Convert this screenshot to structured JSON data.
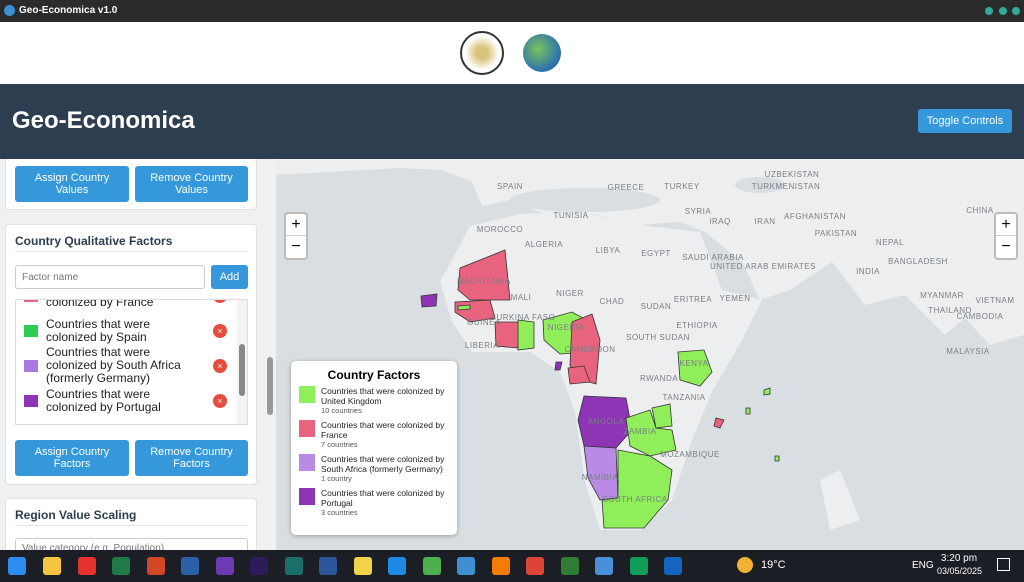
{
  "window": {
    "title": "Geo-Economica v1.0"
  },
  "header": {
    "title": "Geo-Economica",
    "toggle_button": "Toggle Controls"
  },
  "sidebar": {
    "values_panel": {
      "assign": "Assign Country Values",
      "remove": "Remove Country Values"
    },
    "factors_panel": {
      "title": "Country Qualitative Factors",
      "placeholder": "Factor name",
      "add": "Add",
      "items": [
        {
          "label": "Countries that were colonized by France",
          "color": "#e8637d"
        },
        {
          "label": "Countries that were colonized by Spain",
          "color": "#2ecc52"
        },
        {
          "label": "Countries that were colonized by South Africa (formerly Germany)",
          "color": "#a97be0"
        },
        {
          "label": "Countries that were colonized by Portugal",
          "color": "#8e35b6"
        }
      ],
      "assign": "Assign Country Factors",
      "remove": "Remove Country Factors"
    },
    "scaling_panel": {
      "title": "Region Value Scaling",
      "placeholder": "Value category (e.g. Population)"
    }
  },
  "map": {
    "zoom_in": "+",
    "zoom_out": "−",
    "labels": [
      "SPAIN",
      "GREECE",
      "TURKEY",
      "UZBEKISTAN",
      "TURKMENISTAN",
      "TUNISIA",
      "SYRIA",
      "IRAQ",
      "IRAN",
      "AFGHANISTAN",
      "CHINA",
      "MOROCCO",
      "ALGERIA",
      "LIBYA",
      "EGYPT",
      "PAKISTAN",
      "NEPAL",
      "SAUDI ARABIA",
      "UNITED ARAB EMIRATES",
      "INDIA",
      "BANGLADESH",
      "MAURITANIA",
      "MALI",
      "NIGER",
      "CHAD",
      "SUDAN",
      "ERITREA",
      "YEMEN",
      "MYANMAR",
      "VIETNAM",
      "THAILAND",
      "CAMBODIA",
      "BURKINA FASO",
      "GUINEA",
      "LIBERIA",
      "NIGERIA",
      "SOUTH SUDAN",
      "ETHIOPIA",
      "CAMEROON",
      "KENYA",
      "RWANDA",
      "TANZANIA",
      "MALAYSIA",
      "ANGOLA",
      "ZAMBIA",
      "MOZAMBIQUE",
      "NAMIBIA",
      "SOUTH AFRICA"
    ],
    "legend": {
      "title": "Country Factors",
      "items": [
        {
          "label": "Countries that were colonized by United Kingdom",
          "count": "10 countries",
          "color": "#90ee5a"
        },
        {
          "label": "Countries that were colonized by France",
          "count": "7 countries",
          "color": "#e8637d"
        },
        {
          "label": "Countries that were colonized by South Africa (formerly Germany)",
          "count": "1 country",
          "color": "#b98ae6"
        },
        {
          "label": "Countries that were colonized by Portugal",
          "count": "3 countries",
          "color": "#8e35b6"
        }
      ]
    }
  },
  "taskbar": {
    "temperature": "19°C",
    "language": "ENG",
    "time": "3:20 pm",
    "date": "03/05/2025"
  }
}
